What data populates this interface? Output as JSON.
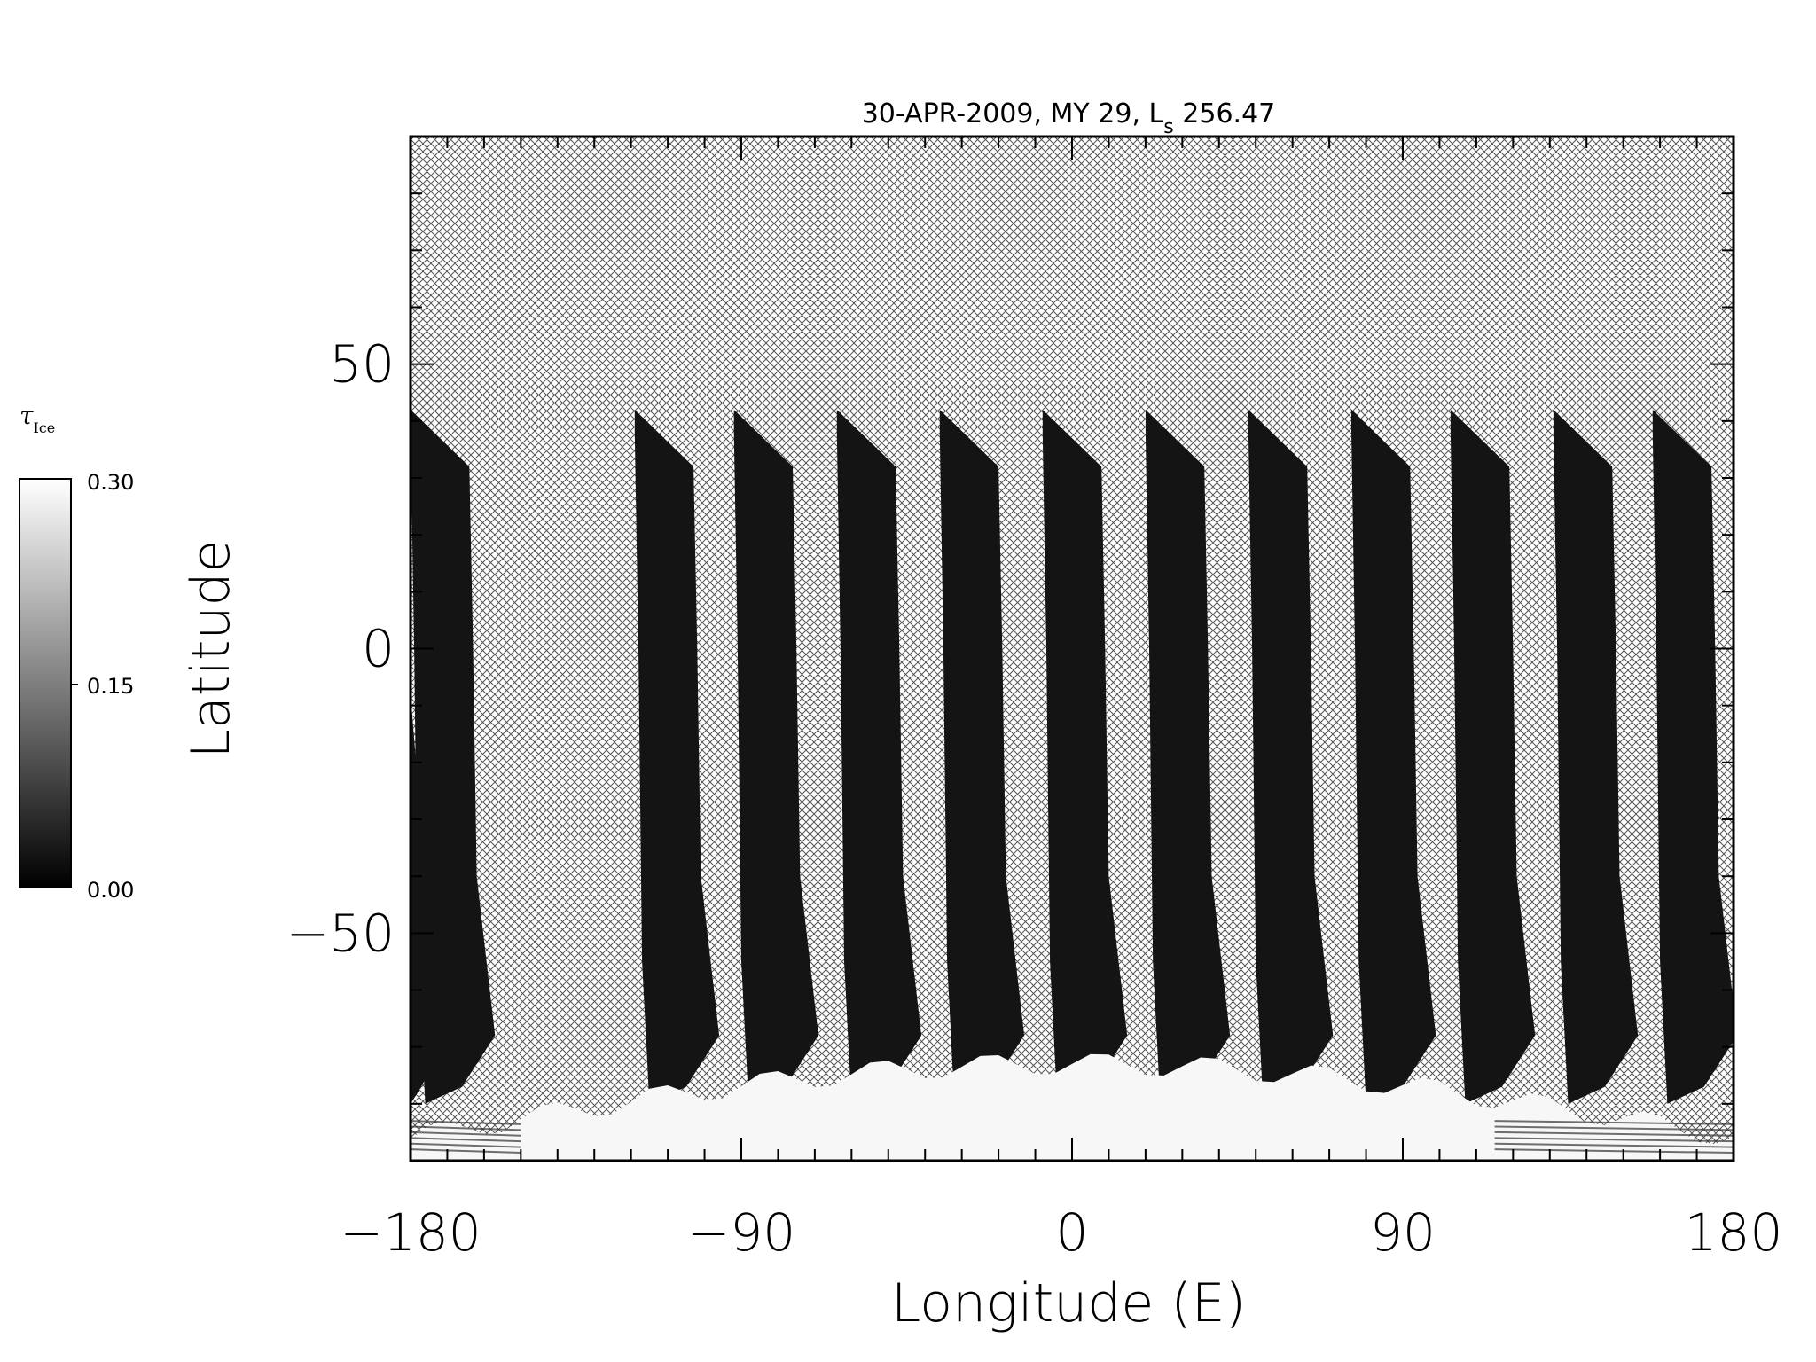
{
  "chart_data": {
    "type": "heatmap",
    "title": "30-APR-2009, MY 29,  L",
    "title_subscript": "s",
    "title_value": "256.47",
    "xlabel": "Longitude (E)",
    "ylabel": "Latitude",
    "xlim": [
      -180,
      180
    ],
    "ylim": [
      -90,
      90
    ],
    "x_ticks": [
      -180,
      -90,
      0,
      90,
      180
    ],
    "x_tick_labels": [
      "−180",
      "−90",
      "0",
      "90",
      "180"
    ],
    "y_ticks": [
      -50,
      0,
      50
    ],
    "y_tick_labels": [
      "−50",
      "0",
      "50"
    ],
    "colormap": "grayscale",
    "colorbar": {
      "label": "τ",
      "label_subscript": "Ice",
      "range": [
        0.0,
        0.3
      ],
      "ticks": [
        "0.30",
        "0.15",
        "0.00"
      ]
    },
    "no_data_pattern": "crosshatch",
    "data_gap_swaths": {
      "description": "orbit-track strips with tau_ice near 0.00",
      "center_longitudes_at_equator": [
        -170,
        -109,
        -82,
        -54,
        -26,
        2,
        30,
        58,
        86,
        113,
        141,
        168
      ],
      "lat_range": [
        -82,
        42
      ]
    },
    "southern_cap": {
      "description": "high tau_ice region near south pole",
      "value": 0.3,
      "lat_range": [
        -90,
        -72
      ]
    }
  }
}
